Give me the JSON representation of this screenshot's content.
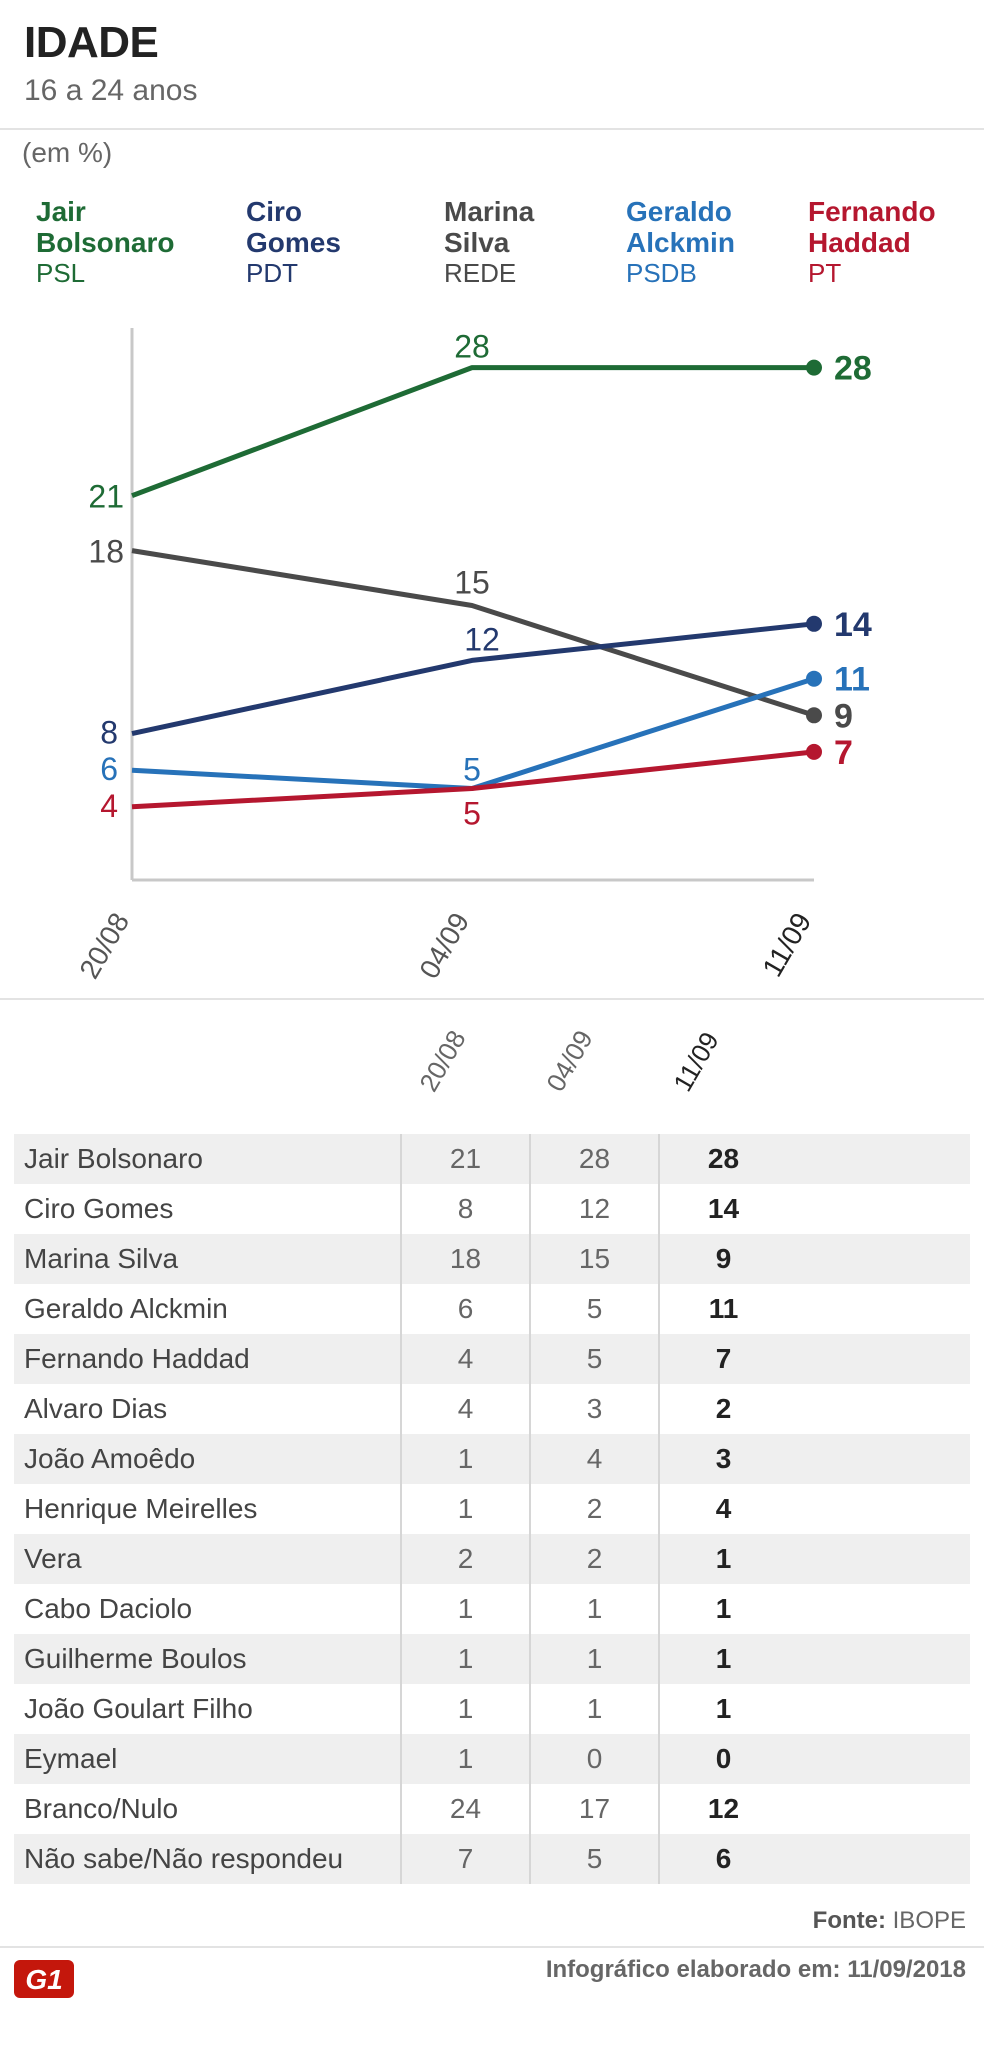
{
  "header": {
    "title": "IDADE",
    "subtitle": "16 a 24 anos",
    "unit": "(em %)"
  },
  "legend": [
    {
      "name": "Jair\nBolsonaro",
      "party": "PSL",
      "color": "#1e6b35"
    },
    {
      "name": "Ciro\nGomes",
      "party": "PDT",
      "color": "#23396e"
    },
    {
      "name": "Marina\nSilva",
      "party": "REDE",
      "color": "#4a4a4a"
    },
    {
      "name": "Geraldo\nAlckmin",
      "party": "PSDB",
      "color": "#2772b9"
    },
    {
      "name": "Fernando\nHaddad",
      "party": "PT",
      "color": "#b5172f"
    }
  ],
  "chart_data": {
    "type": "line",
    "categories": [
      "20/08",
      "04/09",
      "11/09"
    ],
    "ylim": [
      0,
      30
    ],
    "series": [
      {
        "name": "Jair Bolsonaro",
        "color": "#1e6b35",
        "values": [
          21,
          28,
          28
        ]
      },
      {
        "name": "Marina Silva",
        "color": "#4a4a4a",
        "values": [
          18,
          15,
          9
        ]
      },
      {
        "name": "Ciro Gomes",
        "color": "#23396e",
        "values": [
          8,
          12,
          14
        ]
      },
      {
        "name": "Geraldo Alckmin",
        "color": "#2772b9",
        "values": [
          6,
          5,
          11
        ]
      },
      {
        "name": "Fernando Haddad",
        "color": "#b5172f",
        "values": [
          4,
          5,
          7
        ]
      }
    ]
  },
  "table": {
    "columns": [
      "20/08",
      "04/09",
      "11/09"
    ],
    "rows": [
      {
        "name": "Jair Bolsonaro",
        "values": [
          "21",
          "28",
          "28"
        ]
      },
      {
        "name": "Ciro Gomes",
        "values": [
          "8",
          "12",
          "14"
        ]
      },
      {
        "name": "Marina Silva",
        "values": [
          "18",
          "15",
          "9"
        ]
      },
      {
        "name": "Geraldo Alckmin",
        "values": [
          "6",
          "5",
          "11"
        ]
      },
      {
        "name": "Fernando Haddad",
        "values": [
          "4",
          "5",
          "7"
        ]
      },
      {
        "name": "Alvaro Dias",
        "values": [
          "4",
          "3",
          "2"
        ]
      },
      {
        "name": "João Amoêdo",
        "values": [
          "1",
          "4",
          "3"
        ]
      },
      {
        "name": "Henrique Meirelles",
        "values": [
          "1",
          "2",
          "4"
        ]
      },
      {
        "name": "Vera",
        "values": [
          "2",
          "2",
          "1"
        ]
      },
      {
        "name": "Cabo Daciolo",
        "values": [
          "1",
          "1",
          "1"
        ]
      },
      {
        "name": "Guilherme Boulos",
        "values": [
          "1",
          "1",
          "1"
        ]
      },
      {
        "name": "João Goulart Filho",
        "values": [
          "1",
          "1",
          "1"
        ]
      },
      {
        "name": "Eymael",
        "values": [
          "1",
          "0",
          "0"
        ]
      },
      {
        "name": "Branco/Nulo",
        "values": [
          "24",
          "17",
          "12"
        ]
      },
      {
        "name": "Não sabe/Não respondeu",
        "values": [
          "7",
          "5",
          "6"
        ]
      }
    ]
  },
  "footer": {
    "source_label": "Fonte:",
    "source": "IBOPE",
    "logo_text": "G1",
    "credit": "Infográfico elaborado em: 11/09/2018"
  }
}
